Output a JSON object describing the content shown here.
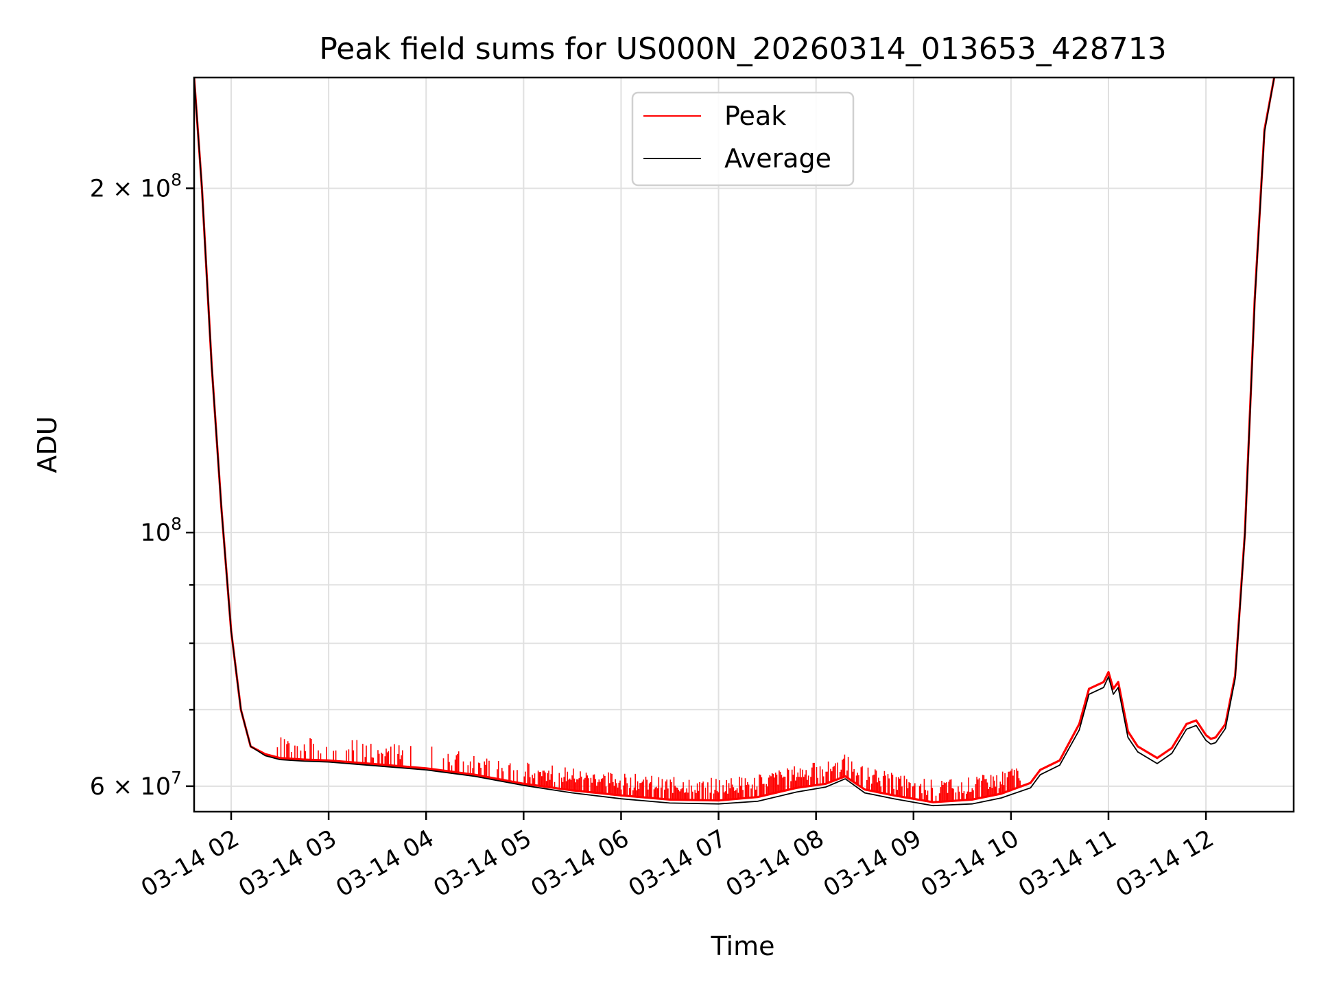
{
  "chart_data": {
    "type": "line",
    "title": "Peak field sums for US000N_20260314_013653_428713",
    "xlabel": "Time",
    "ylabel": "ADU",
    "yscale": "log",
    "ylim": [
      57000000,
      250000000
    ],
    "xlim": [
      1.62,
      12.9
    ],
    "grid": true,
    "legend_position": "top-center",
    "x_ticks": [
      {
        "value": 2,
        "label": "03-14 02"
      },
      {
        "value": 3,
        "label": "03-14 03"
      },
      {
        "value": 4,
        "label": "03-14 04"
      },
      {
        "value": 5,
        "label": "03-14 05"
      },
      {
        "value": 6,
        "label": "03-14 06"
      },
      {
        "value": 7,
        "label": "03-14 07"
      },
      {
        "value": 8,
        "label": "03-14 08"
      },
      {
        "value": 9,
        "label": "03-14 09"
      },
      {
        "value": 10,
        "label": "03-14 10"
      },
      {
        "value": 11,
        "label": "03-14 11"
      },
      {
        "value": 12,
        "label": "03-14 12"
      }
    ],
    "y_major_ticks": [
      {
        "value": 60000000,
        "base": "6 × 10",
        "exp": "7"
      },
      {
        "value": 100000000,
        "base": "10",
        "exp": "8"
      },
      {
        "value": 200000000,
        "base": "2 × 10",
        "exp": "8"
      }
    ],
    "y_minor_ticks": [
      70000000,
      80000000,
      90000000
    ],
    "series": [
      {
        "name": "Peak",
        "color": "#ff0000",
        "x": [
          1.62,
          1.7,
          1.8,
          1.9,
          2.0,
          2.1,
          2.2,
          2.35,
          2.5,
          2.75,
          3.0,
          3.5,
          4.0,
          4.5,
          5.0,
          5.5,
          6.0,
          6.5,
          7.0,
          7.4,
          7.8,
          8.1,
          8.3,
          8.5,
          8.8,
          9.2,
          9.6,
          9.9,
          10.2,
          10.3,
          10.5,
          10.7,
          10.8,
          10.95,
          11.0,
          11.05,
          11.1,
          11.2,
          11.3,
          11.5,
          11.65,
          11.8,
          11.9,
          12.0,
          12.05,
          12.1,
          12.2,
          12.3,
          12.4,
          12.5,
          12.6,
          12.7
        ],
        "y": [
          250000000,
          200000000,
          140000000,
          105000000,
          82000000,
          70000000,
          65000000,
          64000000,
          63500000,
          63300000,
          63200000,
          62700000,
          62200000,
          61400000,
          60300000,
          59500000,
          58900000,
          58400000,
          58300000,
          58700000,
          59800000,
          60300000,
          61200000,
          59600000,
          58900000,
          58100000,
          58400000,
          59100000,
          60400000,
          62000000,
          63200000,
          68000000,
          73000000,
          74000000,
          75500000,
          73000000,
          74000000,
          67000000,
          65000000,
          63500000,
          64800000,
          68000000,
          68500000,
          66500000,
          66000000,
          66200000,
          68000000,
          75000000,
          100000000,
          160000000,
          225000000,
          250000000
        ],
        "spikes_note": "frequent upward red spikes from 03-14 02:30 to 03-14 10 reaching about 6.4 × 10^7"
      },
      {
        "name": "Average",
        "color": "#000000",
        "x": [
          1.62,
          1.7,
          1.8,
          1.9,
          2.0,
          2.1,
          2.2,
          2.35,
          2.5,
          2.75,
          3.0,
          3.5,
          4.0,
          4.5,
          5.0,
          5.5,
          6.0,
          6.5,
          7.0,
          7.4,
          7.8,
          8.1,
          8.3,
          8.5,
          8.8,
          9.2,
          9.6,
          9.9,
          10.2,
          10.3,
          10.5,
          10.7,
          10.8,
          10.95,
          11.0,
          11.05,
          11.1,
          11.2,
          11.3,
          11.5,
          11.65,
          11.8,
          11.9,
          12.0,
          12.05,
          12.1,
          12.2,
          12.3,
          12.4,
          12.5,
          12.6,
          12.7
        ],
        "y": [
          250000000,
          200000000,
          140000000,
          105000000,
          82000000,
          70000000,
          65000000,
          63800000,
          63300000,
          63100000,
          63000000,
          62500000,
          62000000,
          61200000,
          60100000,
          59200000,
          58500000,
          58000000,
          57900000,
          58200000,
          59300000,
          59900000,
          60900000,
          59200000,
          58500000,
          57700000,
          57900000,
          58600000,
          59800000,
          61400000,
          62600000,
          67200000,
          72200000,
          73200000,
          74800000,
          72200000,
          73200000,
          66200000,
          64300000,
          62800000,
          64100000,
          67300000,
          67800000,
          65800000,
          65300000,
          65500000,
          67400000,
          74500000,
          99500000,
          159000000,
          224000000,
          250000000
        ]
      }
    ]
  }
}
